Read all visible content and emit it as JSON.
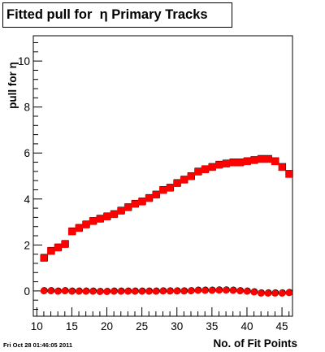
{
  "footer_text": "Fri Oct 28 01:46:05 2011",
  "chart_data": {
    "type": "scatter",
    "title": "Fitted pull for  η Primary Tracks",
    "xlabel": "No. of Fit Points",
    "ylabel": "pull for η",
    "xlim": [
      9.5,
      46.5
    ],
    "ylim": [
      -1.1,
      11.1
    ],
    "xticks": [
      10,
      15,
      20,
      25,
      30,
      35,
      40,
      45
    ],
    "yticks": [
      0,
      2,
      4,
      6,
      8,
      10
    ],
    "grid": false,
    "legend": "none",
    "colors": {
      "series": "#ff0000",
      "shadow": "#000000"
    },
    "x": [
      11,
      12,
      13,
      14,
      15,
      16,
      17,
      18,
      19,
      20,
      21,
      22,
      23,
      24,
      25,
      26,
      27,
      28,
      29,
      30,
      31,
      32,
      33,
      34,
      35,
      36,
      37,
      38,
      39,
      40,
      41,
      42,
      43,
      44,
      45,
      46
    ],
    "series": [
      {
        "marker": "square",
        "values": [
          1.45,
          1.75,
          1.9,
          2.05,
          2.6,
          2.75,
          2.9,
          3.05,
          3.15,
          3.25,
          3.35,
          3.5,
          3.65,
          3.8,
          3.9,
          4.05,
          4.2,
          4.4,
          4.5,
          4.7,
          4.85,
          5.0,
          5.2,
          5.3,
          5.4,
          5.5,
          5.55,
          5.6,
          5.6,
          5.65,
          5.7,
          5.75,
          5.75,
          5.65,
          5.4,
          5.1
        ]
      },
      {
        "marker": "circle",
        "values": [
          0.0,
          0.0,
          -0.02,
          0.0,
          -0.02,
          -0.02,
          -0.02,
          -0.02,
          -0.03,
          -0.03,
          -0.02,
          -0.02,
          -0.02,
          -0.02,
          -0.02,
          -0.02,
          -0.02,
          -0.01,
          -0.01,
          -0.01,
          -0.01,
          0.0,
          0.02,
          0.02,
          0.02,
          0.03,
          0.03,
          0.02,
          0.0,
          -0.02,
          -0.05,
          -0.1,
          -0.1,
          -0.1,
          -0.1,
          -0.08
        ]
      }
    ]
  }
}
